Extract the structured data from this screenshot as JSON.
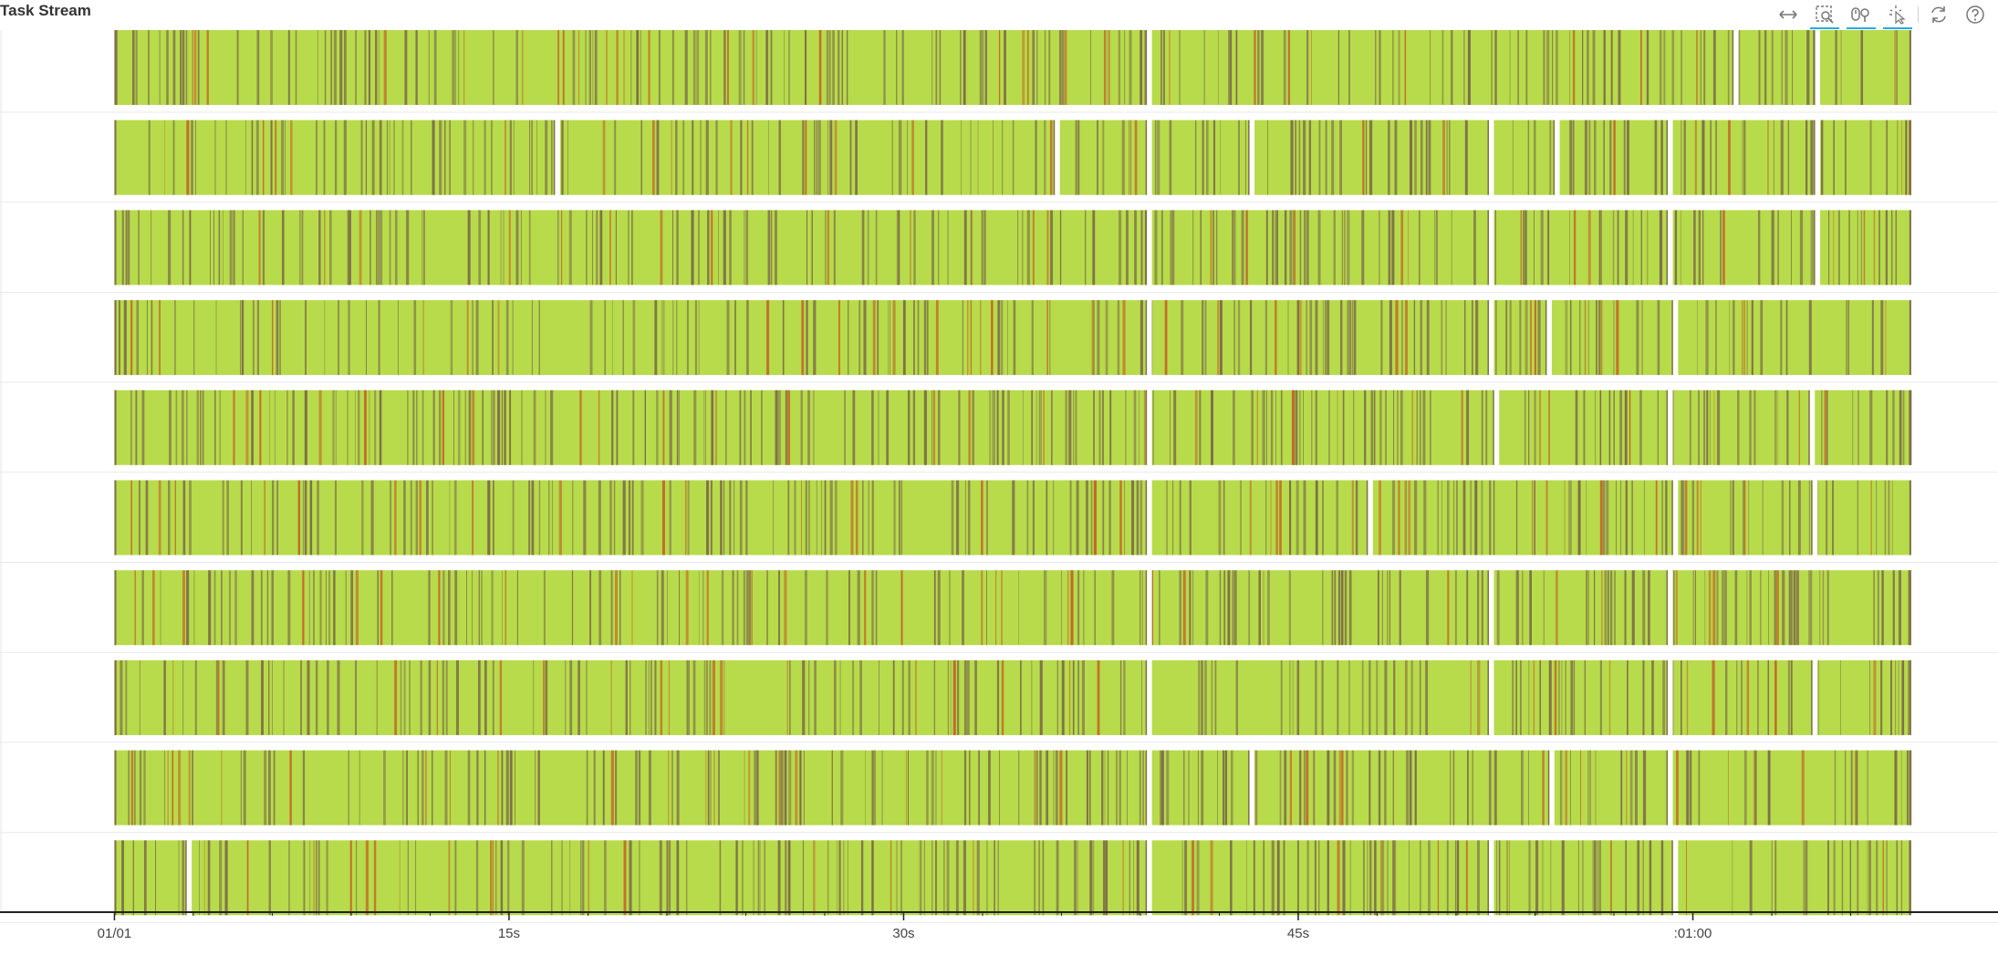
{
  "title": "Task Stream",
  "toolbar": {
    "tools": [
      {
        "name": "pan-tool",
        "icon": "horizontal-arrows-icon",
        "active": false
      },
      {
        "name": "box-zoom-tool",
        "icon": "box-zoom-icon",
        "active": true
      },
      {
        "name": "wheel-zoom-tool",
        "icon": "wheel-zoom-icon",
        "active": true
      },
      {
        "name": "tap-tool",
        "icon": "tap-select-icon",
        "active": true
      },
      {
        "name": "reset-tool",
        "icon": "reset-icon",
        "active": false
      },
      {
        "name": "help-tool",
        "icon": "help-icon",
        "active": false
      }
    ],
    "active_color": "#26aae1"
  },
  "chart_data": {
    "type": "timeline",
    "x_axis": {
      "min_seconds": -4.35,
      "max_seconds": 71.6,
      "ticks": [
        {
          "seconds": 0,
          "label": "01/01"
        },
        {
          "seconds": 15,
          "label": "15s"
        },
        {
          "seconds": 30,
          "label": "30s"
        },
        {
          "seconds": 45,
          "label": "45s"
        },
        {
          "seconds": 60,
          "label": ":01:00"
        }
      ]
    },
    "y_axis": {
      "tick_labels": [],
      "ylim": [
        -0.5,
        9.5
      ]
    },
    "grid": true,
    "legend": "none",
    "colors": {
      "task_primary": "#b7db4a",
      "task_secondary": "#7e6e49",
      "task_accent": "#c2682a"
    },
    "lanes": [
      {
        "start": 0.0,
        "end": 68.3,
        "gaps": [
          39.3,
          61.6,
          64.7
        ]
      },
      {
        "start": 0.0,
        "end": 68.3,
        "gaps": [
          16.8,
          35.8,
          39.3,
          43.2,
          52.3,
          54.8,
          59.1,
          64.7
        ]
      },
      {
        "start": 0.0,
        "end": 68.3,
        "gaps": [
          39.3,
          52.3,
          59.1,
          64.7
        ]
      },
      {
        "start": 0.0,
        "end": 68.3,
        "gaps": [
          39.3,
          52.3,
          54.5,
          59.3
        ]
      },
      {
        "start": 0.0,
        "end": 68.3,
        "gaps": [
          39.3,
          52.5,
          59.1,
          64.5
        ]
      },
      {
        "start": 0.0,
        "end": 68.3,
        "gaps": [
          39.3,
          47.7,
          59.3,
          64.6
        ]
      },
      {
        "start": 0.0,
        "end": 68.3,
        "gaps": [
          39.3,
          52.3,
          59.1
        ]
      },
      {
        "start": 0.0,
        "end": 68.3,
        "gaps": [
          39.3,
          52.3,
          59.1,
          64.6
        ]
      },
      {
        "start": 0.0,
        "end": 68.3,
        "gaps": [
          39.3,
          43.2,
          54.6,
          59.1
        ]
      },
      {
        "start": 0.0,
        "end": 68.3,
        "gaps": [
          2.8,
          39.3,
          52.3,
          59.3
        ]
      }
    ]
  }
}
